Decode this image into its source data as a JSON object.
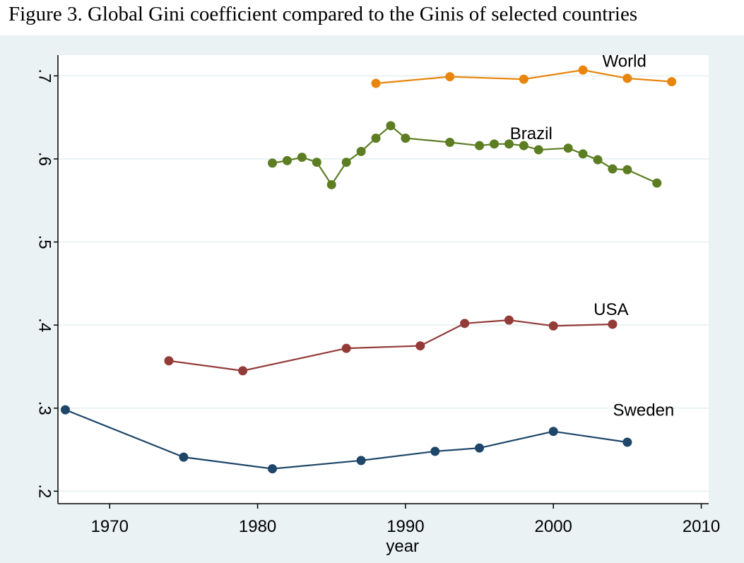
{
  "title": "Figure 3. Global Gini coefficient compared to the Ginis of selected countries",
  "chart_data": {
    "type": "line",
    "title": "Figure 3. Global Gini coefficient compared to the Ginis of selected countries",
    "xlabel": "year",
    "ylabel": "",
    "xlim": [
      1966.5,
      2010.5
    ],
    "ylim": [
      0.185,
      0.725
    ],
    "xticks": [
      1970,
      1980,
      1990,
      2000,
      2010
    ],
    "xtick_labels": [
      "1970",
      "1980",
      "1990",
      "2000",
      "2010"
    ],
    "yticks": [
      0.2,
      0.3,
      0.4,
      0.5,
      0.6,
      0.7
    ],
    "ytick_labels": [
      ".2",
      ".3",
      ".4",
      ".5",
      ".6",
      ".7"
    ],
    "grid": true,
    "legend": "none",
    "series": [
      {
        "name": "World",
        "color": "#e8850c",
        "points": [
          [
            1988,
            0.691
          ],
          [
            1993,
            0.699
          ],
          [
            1998,
            0.696
          ],
          [
            2002,
            0.707
          ],
          [
            2005,
            0.697
          ],
          [
            2008,
            0.693
          ]
        ]
      },
      {
        "name": "Brazil",
        "color": "#5c7d22",
        "points": [
          [
            1981,
            0.595
          ],
          [
            1982,
            0.598
          ],
          [
            1983,
            0.602
          ],
          [
            1984,
            0.596
          ],
          [
            1985,
            0.569
          ],
          [
            1986,
            0.596
          ],
          [
            1987,
            0.609
          ],
          [
            1988,
            0.625
          ],
          [
            1989,
            0.64
          ],
          [
            1990,
            0.625
          ],
          [
            1993,
            0.62
          ],
          [
            1995,
            0.616
          ],
          [
            1996,
            0.618
          ],
          [
            1997,
            0.618
          ],
          [
            1998,
            0.616
          ],
          [
            1999,
            0.611
          ],
          [
            2001,
            0.613
          ],
          [
            2002,
            0.606
          ],
          [
            2003,
            0.599
          ],
          [
            2004,
            0.588
          ],
          [
            2005,
            0.587
          ],
          [
            2007,
            0.571
          ]
        ]
      },
      {
        "name": "USA",
        "color": "#933b37",
        "points": [
          [
            1974,
            0.357
          ],
          [
            1979,
            0.345
          ],
          [
            1986,
            0.372
          ],
          [
            1991,
            0.375
          ],
          [
            1994,
            0.402
          ],
          [
            1997,
            0.406
          ],
          [
            2000,
            0.399
          ],
          [
            2004,
            0.401
          ]
        ]
      },
      {
        "name": "Sweden",
        "color": "#1e4669",
        "points": [
          [
            1967,
            0.298
          ],
          [
            1975,
            0.241
          ],
          [
            1981,
            0.227
          ],
          [
            1987,
            0.237
          ],
          [
            1992,
            0.248
          ],
          [
            1995,
            0.252
          ],
          [
            2000,
            0.272
          ],
          [
            2005,
            0.259
          ]
        ]
      }
    ]
  }
}
